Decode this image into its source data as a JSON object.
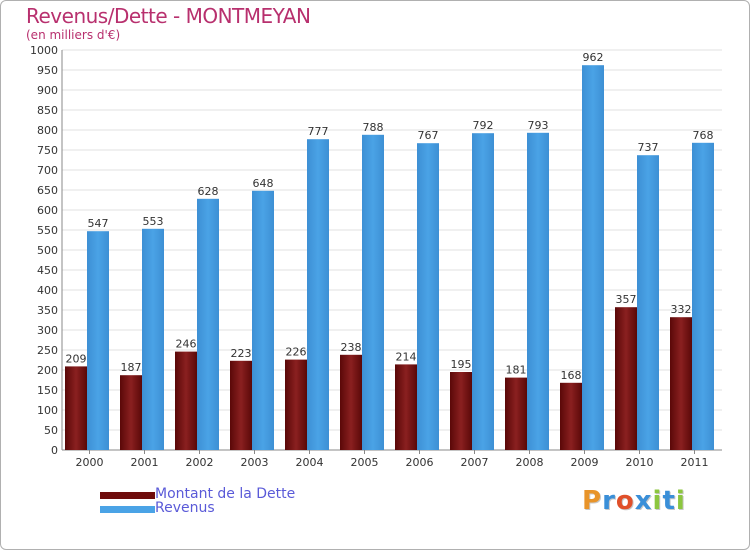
{
  "title": "Revenus/Dette - MONTMEYAN",
  "subtitle": "(en milliers d'€)",
  "colors": {
    "dette": "#6e0b0b",
    "revenus": "#4aa3e6",
    "title": "#b8306e",
    "legend_text": "#5a5ad8"
  },
  "legend": {
    "items": [
      "Montant de la Dette",
      "Revenus"
    ]
  },
  "logo": {
    "text": "Proxiti",
    "letters": [
      "P",
      "r",
      "o",
      "x",
      "i",
      "t",
      "i"
    ],
    "letter_colors": [
      "#e8942a",
      "#3a8fd8",
      "#e0502a",
      "#3a8fd8",
      "#8cc63f",
      "#3a8fd8",
      "#8cc63f"
    ]
  },
  "chart_data": {
    "type": "bar",
    "title": "Revenus/Dette - MONTMEYAN",
    "subtitle": "(en milliers d'€)",
    "xlabel": "",
    "ylabel": "",
    "ylim": [
      0,
      1000
    ],
    "ytick_step": 50,
    "grid": true,
    "legend_position": "bottom-left",
    "categories": [
      "2000",
      "2001",
      "2002",
      "2003",
      "2004",
      "2005",
      "2006",
      "2007",
      "2008",
      "2009",
      "2010",
      "2011"
    ],
    "series": [
      {
        "name": "Montant de la Dette",
        "values": [
          209,
          187,
          246,
          223,
          226,
          238,
          214,
          195,
          181,
          168,
          357,
          332
        ]
      },
      {
        "name": "Revenus",
        "values": [
          547,
          553,
          628,
          648,
          777,
          788,
          767,
          792,
          793,
          962,
          737,
          768
        ]
      }
    ]
  }
}
